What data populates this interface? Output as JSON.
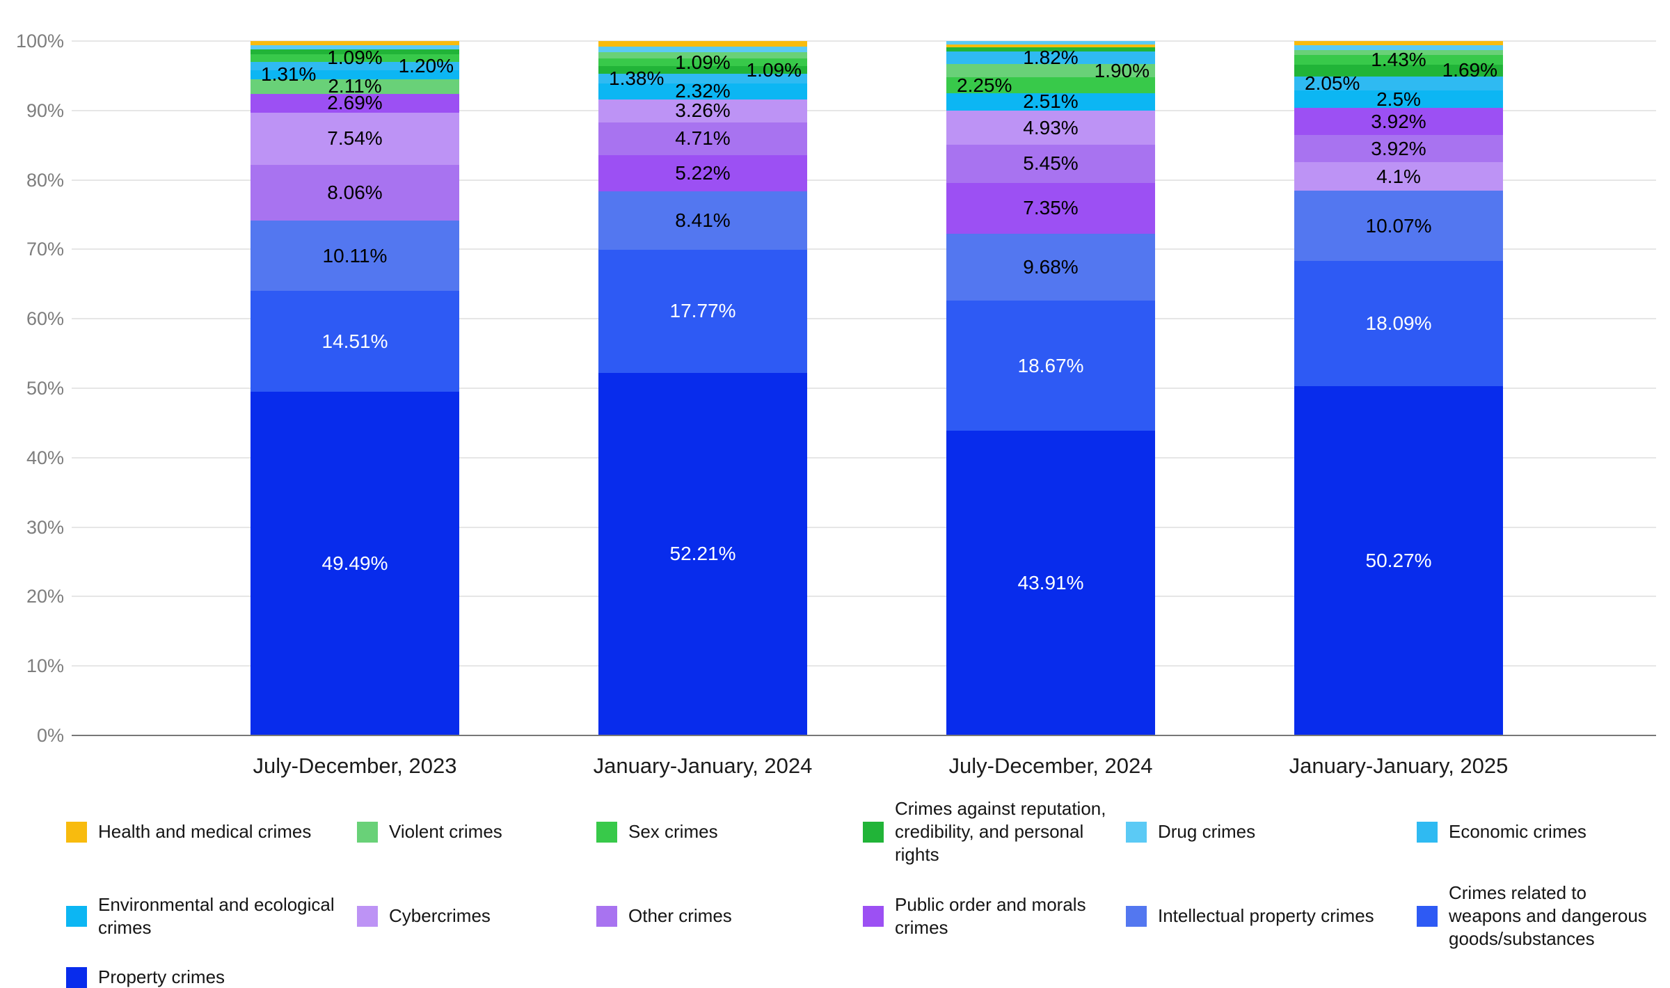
{
  "chart_data": {
    "type": "bar",
    "stacked": true,
    "percent_stacked": true,
    "title": "",
    "xlabel": "",
    "ylabel": "",
    "ylim": [
      0,
      100
    ],
    "grid": true,
    "legend_position": "bottom",
    "y_ticks": [
      "0%",
      "10%",
      "20%",
      "30%",
      "40%",
      "50%",
      "60%",
      "70%",
      "80%",
      "90%",
      "100%"
    ],
    "categories": [
      "July-December, 2023",
      "January-January, 2024",
      "July-December, 2024",
      "January-January, 2025"
    ],
    "legend": [
      {
        "key": "health",
        "label": "Health and medical crimes",
        "color": "#f8bb0e"
      },
      {
        "key": "violent",
        "label": "Violent crimes",
        "color": "#69d178"
      },
      {
        "key": "sex",
        "label": "Sex crimes",
        "color": "#38c94a"
      },
      {
        "key": "reputation",
        "label": "Crimes against reputation, credibility, and personal rights",
        "color": "#21b438"
      },
      {
        "key": "drug",
        "label": "Drug crimes",
        "color": "#5bcaf5"
      },
      {
        "key": "economic",
        "label": "Economic crimes",
        "color": "#2fbaf2"
      },
      {
        "key": "environmental",
        "label": "Environmental and ecological crimes",
        "color": "#0cb6f3"
      },
      {
        "key": "cyber",
        "label": "Cybercrimes",
        "color": "#bd93f5"
      },
      {
        "key": "other",
        "label": "Other crimes",
        "color": "#a873f0"
      },
      {
        "key": "public_order",
        "label": "Public order and morals crimes",
        "color": "#9c50f3"
      },
      {
        "key": "intellectual",
        "label": "Intellectual property crimes",
        "color": "#5377f0"
      },
      {
        "key": "weapons",
        "label": "Crimes related to weapons and dangerous goods/substances",
        "color": "#2e5af4"
      },
      {
        "key": "property",
        "label": "Property crimes",
        "color": "#082cec"
      }
    ],
    "white_label_categories": [
      "weapons",
      "property"
    ],
    "bars": [
      {
        "label": "July-December, 2023",
        "segments": [
          {
            "category": "property",
            "value": 49.49,
            "label": "49.49%",
            "label_pos": "center"
          },
          {
            "category": "weapons",
            "value": 14.51,
            "label": "14.51%",
            "label_pos": "center"
          },
          {
            "category": "intellectual",
            "value": 10.11,
            "label": "10.11%",
            "label_pos": "center"
          },
          {
            "category": "other",
            "value": 8.06,
            "label": "8.06%",
            "label_pos": "center"
          },
          {
            "category": "cyber",
            "value": 7.54,
            "label": "7.54%",
            "label_pos": "center"
          },
          {
            "category": "public_order",
            "value": 2.69,
            "label": "2.69%",
            "label_pos": "center"
          },
          {
            "category": "violent",
            "value": 2.11,
            "label": "2.11%",
            "label_pos": "center"
          },
          {
            "category": "environmental",
            "value": 1.31,
            "label": "1.31%",
            "label_pos": "left"
          },
          {
            "category": "economic",
            "value": 1.2,
            "label": "1.20%",
            "label_pos": "right"
          },
          {
            "category": "sex",
            "value": 1.09,
            "label": "1.09%",
            "label_pos": "center"
          },
          {
            "category": "reputation",
            "value": 0.72,
            "label": null,
            "label_pos": "none"
          },
          {
            "category": "drug",
            "value": 0.62,
            "label": null,
            "label_pos": "none"
          },
          {
            "category": "health",
            "value": 0.55,
            "label": null,
            "label_pos": "none"
          }
        ]
      },
      {
        "label": "January-January, 2024",
        "segments": [
          {
            "category": "property",
            "value": 52.21,
            "label": "52.21%",
            "label_pos": "center"
          },
          {
            "category": "weapons",
            "value": 17.77,
            "label": "17.77%",
            "label_pos": "center"
          },
          {
            "category": "intellectual",
            "value": 8.41,
            "label": "8.41%",
            "label_pos": "center"
          },
          {
            "category": "public_order",
            "value": 5.22,
            "label": "5.22%",
            "label_pos": "center"
          },
          {
            "category": "other",
            "value": 4.71,
            "label": "4.71%",
            "label_pos": "center"
          },
          {
            "category": "cyber",
            "value": 3.26,
            "label": "3.26%",
            "label_pos": "center"
          },
          {
            "category": "environmental",
            "value": 2.32,
            "label": "2.32%",
            "label_pos": "center"
          },
          {
            "category": "economic",
            "value": 1.38,
            "label": "1.38%",
            "label_pos": "left"
          },
          {
            "category": "reputation",
            "value": 1.09,
            "label": "1.09%",
            "label_pos": "right"
          },
          {
            "category": "sex",
            "value": 1.09,
            "label": "1.09%",
            "label_pos": "center"
          },
          {
            "category": "violent",
            "value": 0.92,
            "label": null,
            "label_pos": "none"
          },
          {
            "category": "drug",
            "value": 0.82,
            "label": null,
            "label_pos": "none"
          },
          {
            "category": "health",
            "value": 0.8,
            "label": null,
            "label_pos": "none"
          }
        ]
      },
      {
        "label": "July-December, 2024",
        "segments": [
          {
            "category": "property",
            "value": 43.91,
            "label": "43.91%",
            "label_pos": "center"
          },
          {
            "category": "weapons",
            "value": 18.67,
            "label": "18.67%",
            "label_pos": "center"
          },
          {
            "category": "intellectual",
            "value": 9.68,
            "label": "9.68%",
            "label_pos": "center"
          },
          {
            "category": "public_order",
            "value": 7.35,
            "label": "7.35%",
            "label_pos": "center"
          },
          {
            "category": "other",
            "value": 5.45,
            "label": "5.45%",
            "label_pos": "center"
          },
          {
            "category": "cyber",
            "value": 4.93,
            "label": "4.93%",
            "label_pos": "center"
          },
          {
            "category": "environmental",
            "value": 2.51,
            "label": "2.51%",
            "label_pos": "center"
          },
          {
            "category": "sex",
            "value": 2.25,
            "label": "2.25%",
            "label_pos": "left"
          },
          {
            "category": "violent",
            "value": 1.9,
            "label": "1.90%",
            "label_pos": "right"
          },
          {
            "category": "economic",
            "value": 1.82,
            "label": "1.82%",
            "label_pos": "center"
          },
          {
            "category": "reputation",
            "value": 0.6,
            "label": null,
            "label_pos": "none"
          },
          {
            "category": "health",
            "value": 0.48,
            "label": null,
            "label_pos": "none"
          },
          {
            "category": "drug",
            "value": 0.45,
            "label": null,
            "label_pos": "none"
          }
        ]
      },
      {
        "label": "January-January, 2025",
        "segments": [
          {
            "category": "property",
            "value": 50.27,
            "label": "50.27%",
            "label_pos": "center"
          },
          {
            "category": "weapons",
            "value": 18.09,
            "label": "18.09%",
            "label_pos": "center"
          },
          {
            "category": "intellectual",
            "value": 10.07,
            "label": "10.07%",
            "label_pos": "center"
          },
          {
            "category": "cyber",
            "value": 4.1,
            "label": "4.1%",
            "label_pos": "center"
          },
          {
            "category": "other",
            "value": 3.92,
            "label": "3.92%",
            "label_pos": "center"
          },
          {
            "category": "public_order",
            "value": 3.92,
            "label": "3.92%",
            "label_pos": "center"
          },
          {
            "category": "environmental",
            "value": 2.5,
            "label": "2.5%",
            "label_pos": "center"
          },
          {
            "category": "economic",
            "value": 2.05,
            "label": "2.05%",
            "label_pos": "left"
          },
          {
            "category": "reputation",
            "value": 1.69,
            "label": "1.69%",
            "label_pos": "right"
          },
          {
            "category": "sex",
            "value": 1.43,
            "label": "1.43%",
            "label_pos": "center"
          },
          {
            "category": "violent",
            "value": 0.67,
            "label": null,
            "label_pos": "none"
          },
          {
            "category": "drug",
            "value": 0.65,
            "label": null,
            "label_pos": "none"
          },
          {
            "category": "health",
            "value": 0.64,
            "label": null,
            "label_pos": "none"
          }
        ]
      }
    ]
  }
}
